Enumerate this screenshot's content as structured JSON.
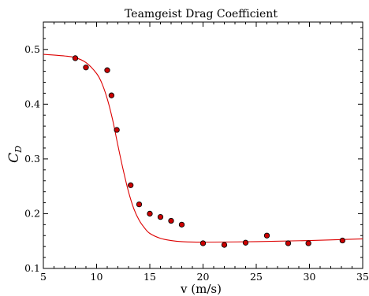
{
  "chart_data": {
    "type": "scatter",
    "title": "Teamgeist Drag Coefficient",
    "xlabel": "v (m/s)",
    "ylabel_main": "C",
    "ylabel_sub": "D",
    "xlim": [
      5,
      35
    ],
    "ylim": [
      0.1,
      0.55
    ],
    "xticks": [
      5,
      10,
      15,
      20,
      25,
      30,
      35
    ],
    "yticks": [
      0.1,
      0.2,
      0.3,
      0.4,
      0.5
    ],
    "ytick_labels": [
      "0.1",
      "0.2",
      "0.3",
      "0.4",
      "0.5"
    ],
    "minor_ticks": true,
    "grid": false,
    "colors": {
      "points": "#cc0000",
      "point_edge": "#000000",
      "fit": "#dd0000"
    },
    "points": {
      "x": [
        8.0,
        9.0,
        11.0,
        11.4,
        11.9,
        13.2,
        14.0,
        15.0,
        16.0,
        17.0,
        18.0,
        20.0,
        22.0,
        24.0,
        26.0,
        28.0,
        29.9,
        33.1
      ],
      "y": [
        0.484,
        0.467,
        0.462,
        0.416,
        0.353,
        0.252,
        0.217,
        0.2,
        0.194,
        0.187,
        0.18,
        0.146,
        0.143,
        0.147,
        0.16,
        0.146,
        0.146,
        0.151
      ]
    },
    "fit_curve": {
      "x": [
        5,
        7,
        8,
        9,
        10,
        10.5,
        11,
        11.5,
        12,
        12.5,
        13,
        13.5,
        14,
        14.5,
        15,
        16,
        17,
        18,
        20,
        25,
        30,
        35
      ],
      "y": [
        0.491,
        0.488,
        0.485,
        0.476,
        0.456,
        0.438,
        0.41,
        0.372,
        0.325,
        0.28,
        0.24,
        0.209,
        0.188,
        0.174,
        0.164,
        0.155,
        0.151,
        0.149,
        0.148,
        0.149,
        0.151,
        0.154
      ]
    }
  }
}
